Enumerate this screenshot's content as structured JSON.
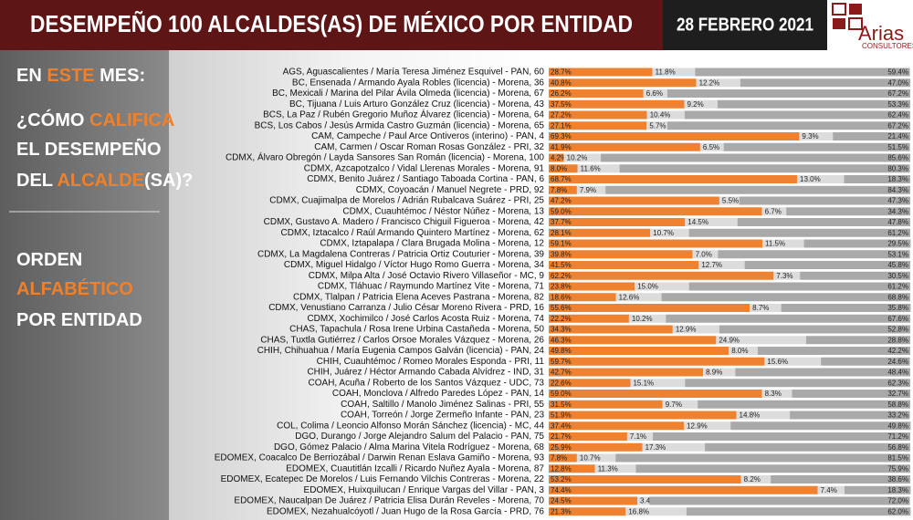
{
  "header": {
    "title": "DESEMPEÑO 100 ALCALDES(AS) DE MÉXICO POR ENTIDAD",
    "date": "28 FEBRERO 2021",
    "logo": "Arias",
    "logo_sub": "CONSULTORES"
  },
  "side_panel": {
    "question": [
      [
        {
          "text": "EN ",
          "accent": false
        },
        {
          "text": "ESTE",
          "accent": true
        },
        {
          "text": " MES:",
          "accent": false
        }
      ],
      [
        {
          "text": "¿CÓMO ",
          "accent": false
        },
        {
          "text": "CALIFICA",
          "accent": true
        }
      ],
      [
        {
          "text": "EL DESEMPEÑO",
          "accent": false
        }
      ],
      [
        {
          "text": "DEL ",
          "accent": false
        },
        {
          "text": "ALCALDE",
          "accent": true
        },
        {
          "text": "(SA)?",
          "accent": false
        }
      ]
    ],
    "order": [
      [
        {
          "text": "ORDEN",
          "accent": false
        }
      ],
      [
        {
          "text": "ALFABÉTICO",
          "accent": true
        }
      ],
      [
        {
          "text": "POR ENTIDAD",
          "accent": false
        }
      ]
    ]
  },
  "chart_data": {
    "type": "stacked-bar-horizontal",
    "xlim": [
      0,
      100
    ],
    "categories": [
      "AGS, Aguascalientes / María Teresa Jiménez Esquivel - PAN, 60",
      "BC, Ensenada / Armando Ayala Robles (licencia) - Morena, 36",
      "BC, Mexicali / Marina del Pilar Ávila Olmeda (licencia) - Morena, 67",
      "BC, Tijuana / Luis Arturo González Cruz (licencia) - Morena, 43",
      "BCS, La Paz / Rubén Gregorio Muñoz Álvarez (licencia) - Morena, 64",
      "BCS, Los Cabos / Jesús Armida Castro Guzmán (licencia) - Morena, 65",
      "CAM, Campeche / Paul Arce Ontiveros (interino) - PAN, 4",
      "CAM, Carmen / Oscar Roman Rosas González - PRI, 32",
      "CDMX, Álvaro Obregón / Layda Sansores San Román (licencia) - Morena, 100",
      "CDMX, Azcapotzalco / Vidal Llerenas Morales - Morena, 91",
      "CDMX, Benito Juárez / Santiago Taboada Cortina - PAN, 6",
      "CDMX, Coyoacán / Manuel Negrete - PRD, 92",
      "CDMX, Cuajimalpa de Morelos / Adrián Rubalcava Suárez - PRI, 25",
      "CDMX, Cuauhtémoc / Néstor Núñez - Morena, 13",
      "CDMX, Gustavo A. Madero / Francisco Chiguil Figueroa - Morena, 42",
      "CDMX, Iztacalco / Raúl Armando Quintero Martínez - Morena, 62",
      "CDMX, Iztapalapa / Clara Brugada Molina - Morena, 12",
      "CDMX, La Magdalena Contreras / Patricia Ortiz Couturier - Morena, 39",
      "CDMX, Miguel Hidalgo / Víctor Hugo Romo Guerra - Morena, 34",
      "CDMX, Milpa Alta / José Octavio Rivero Villaseñor - MC, 9",
      "CDMX, Tláhuac / Raymundo Martínez Vite - Morena, 71",
      "CDMX, Tlalpan / Patricia Elena Aceves Pastrana - Morena, 82",
      "CDMX, Venustiano Carranza / Julio César Moreno Rivera - PRD, 16",
      "CDMX, Xochimilco / José Carlos Acosta Ruiz - Morena, 74",
      "CHAS, Tapachula / Rosa Irene Urbina Castañeda - Morena, 50",
      "CHAS, Tuxtla Gutiérrez / Carlos Orsoe Morales Vázquez - Morena, 26",
      "CHIH, Chihuahua / María Eugenia Campos Galván (licencia) - PAN, 24",
      "CHIH, Cuauhtémoc / Romeo Morales Esponda - PRI, 11",
      "CHIH, Juárez / Héctor Armando Cabada Alvídrez - IND, 31",
      "COAH, Acuña / Roberto de los Santos Vázquez - UDC, 73",
      "COAH, Monclova / Alfredo Paredes López - PAN, 14",
      "COAH, Saltillo / Manolo Jiménez Salinas - PRI, 55",
      "COAH, Torreón / Jorge Zermeño Infante - PAN, 23",
      "COL, Colima / Leoncio Alfonso Morán Sánchez (licencia) - MC, 44",
      "DGO, Durango / Jorge Alejandro Salum del Palacio - PAN, 75",
      "DGO, Gómez Palacio / Alma Marina Vitela Rodríguez - Morena, 68",
      "EDOMEX, Coacalco De Berriozábal / Darwin Renan Eslava Gamiño - Morena, 93",
      "EDOMEX, Cuautitlán Izcalli / Ricardo Nuñez Ayala - Morena, 87",
      "EDOMEX, Ecatepec De Morelos / Luis Fernando Vilchis Contreras - Morena, 22",
      "EDOMEX, Huixquilucan / Enrique Vargas del Villar - PAN, 3",
      "EDOMEX, Naucalpan De Juárez / Patricia Elisa Durán Reveles - Morena, 70",
      "EDOMEX, Nezahualcóyotl / Juan Hugo de la Rosa García - PRD, 76"
    ],
    "series": [
      {
        "color": "#ee8230",
        "values": [
          28.7,
          40.8,
          26.2,
          37.5,
          27.2,
          27.1,
          69.3,
          41.9,
          4.2,
          8.0,
          68.7,
          7.8,
          47.2,
          59.0,
          37.7,
          28.1,
          59.1,
          39.8,
          41.5,
          62.2,
          23.8,
          18.6,
          55.6,
          22.2,
          34.3,
          46.3,
          49.8,
          59.7,
          42.7,
          22.6,
          59.0,
          31.5,
          51.9,
          37.4,
          21.7,
          25.9,
          7.8,
          12.8,
          53.2,
          74.4,
          24.5,
          21.3
        ],
        "value_labels": [
          "28.7%",
          "40.8%",
          "26.2%",
          "37.5%",
          "27.2%",
          "27.1%",
          "69.3%",
          "41.9%",
          "4.2%",
          "8.0%",
          "68.7%",
          "7.8%",
          "47.2%",
          "59.0%",
          "37.7%",
          "28.1%",
          "59.1%",
          "39.8%",
          "41.5%",
          "62.2%",
          "23.8%",
          "18.6%",
          "55.6%",
          "22.2%",
          "34.3%",
          "46.3%",
          "49.8%",
          "59.7%",
          "42.7%",
          "22.6%",
          "59.0%",
          "31.5%",
          "51.9%",
          "37.4%",
          "21.7%",
          "25.9%",
          "7.8%",
          "12.8%",
          "53.2%",
          "74.4%",
          "24.5%",
          "21.3%"
        ]
      },
      {
        "color": "#dcdcdc",
        "values": [
          11.8,
          12.2,
          6.6,
          9.2,
          10.4,
          5.7,
          9.3,
          6.5,
          10.2,
          11.6,
          13.0,
          7.9,
          5.5,
          6.7,
          14.5,
          10.7,
          11.5,
          7.0,
          12.7,
          7.3,
          15.0,
          12.6,
          8.7,
          10.2,
          12.9,
          24.9,
          8.0,
          15.6,
          8.9,
          15.1,
          8.3,
          9.7,
          14.8,
          12.9,
          7.1,
          17.3,
          10.7,
          11.3,
          8.2,
          7.4,
          3.4,
          16.8
        ],
        "value_labels": [
          "11.8%",
          "12.2%",
          "6.6%",
          "9.2%",
          "10.4%",
          "5.7%",
          "9.3%",
          "6.5%",
          "10.2%",
          "11.6%",
          "13.0%",
          "7.9%",
          "5.5%",
          "6.7%",
          "14.5%",
          "10.7%",
          "11.5%",
          "7.0%",
          "12.7%",
          "7.3%",
          "15.0%",
          "12.6%",
          "8.7%",
          "10.2%",
          "12.9%",
          "24.9%",
          "8.0%",
          "15.6%",
          "8.9%",
          "15.1%",
          "8.3%",
          "9.7%",
          "14.8%",
          "12.9%",
          "7.1%",
          "17.3%",
          "10.7%",
          "11.3%",
          "8.2%",
          "7.4%",
          "3.4%",
          "16.8%"
        ]
      },
      {
        "color": "#a9a9a9",
        "values": [
          59.4,
          47.0,
          67.2,
          53.3,
          62.4,
          67.2,
          21.4,
          51.5,
          85.6,
          80.3,
          18.3,
          84.3,
          47.3,
          34.3,
          47.8,
          61.2,
          29.5,
          53.1,
          45.8,
          30.5,
          61.2,
          68.8,
          35.8,
          67.6,
          52.8,
          28.8,
          42.2,
          24.6,
          48.4,
          62.3,
          32.7,
          58.8,
          33.2,
          49.8,
          71.2,
          56.8,
          81.5,
          75.9,
          38.6,
          18.3,
          72.0,
          62.0
        ],
        "value_labels": [
          "59.4%",
          "47.0%",
          "67.2%",
          "53.3%",
          "62.4%",
          "67.2%",
          "21.4%",
          "51.5%",
          "85.6%",
          "80.3%",
          "18.3%",
          "84.3%",
          "47.3%",
          "34.3%",
          "47.8%",
          "61.2%",
          "29.5%",
          "53.1%",
          "45.8%",
          "30.5%",
          "61.2%",
          "68.8%",
          "35.8%",
          "67.6%",
          "52.8%",
          "28.8%",
          "42.2%",
          "24.6%",
          "48.4%",
          "62.3%",
          "32.7%",
          "58.8%",
          "33.2%",
          "49.8%",
          "71.2%",
          "56.8%",
          "81.5%",
          "75.9%",
          "38.6%",
          "18.3%",
          "72.0%",
          "62.0%"
        ]
      }
    ]
  }
}
